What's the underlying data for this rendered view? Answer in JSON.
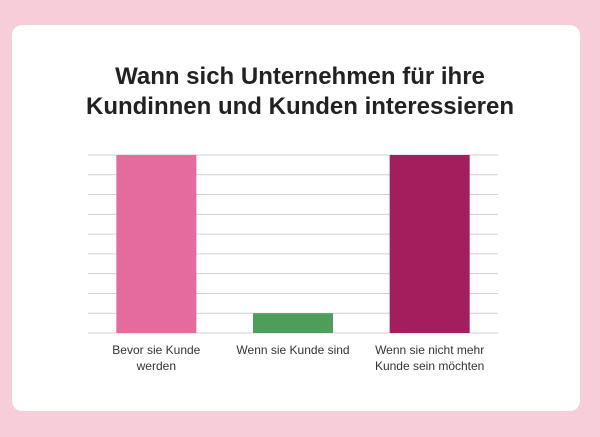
{
  "chart_data": {
    "type": "bar",
    "title": "Wann sich Unternehmen für ihre Kundinnen und Kunden interessieren",
    "categories": [
      "Bevor sie Kunde werden",
      "Wenn sie Kunde sind",
      "Wenn sie nicht mehr Kunde sein möchten"
    ],
    "values": [
      9,
      1,
      9
    ],
    "colors": [
      "#e46b9b",
      "#4f9d5b",
      "#a41d5c"
    ],
    "ylim": [
      0,
      9
    ],
    "yticks": [
      0,
      1,
      2,
      3,
      4,
      5,
      6,
      7,
      8,
      9
    ],
    "grid": true
  }
}
